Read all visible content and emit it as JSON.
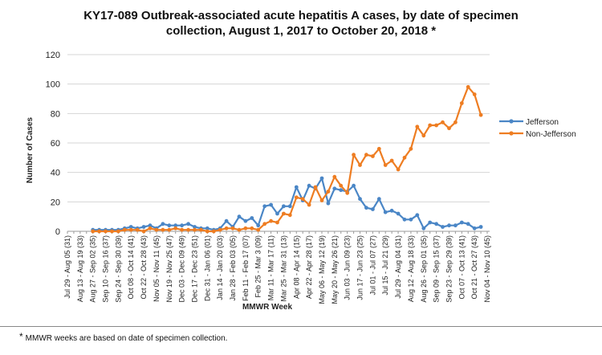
{
  "title_line1": "KY17-089 Outbreak-associated acute hepatitis A cases, by date of specimen",
  "title_line2": "collection, August 1, 2017 to October 20, 2018 *",
  "footnote_star": "*",
  "footnote": "MMWR weeks are based on date of specimen collection.",
  "chart_data": {
    "type": "line",
    "title": "KY17-089 Outbreak-associated acute hepatitis A cases, by date of specimen collection, August 1, 2017 to October 20, 2018 *",
    "xlabel": "MMWR Week",
    "ylabel": "Number of Cases",
    "ylim": [
      0,
      120
    ],
    "yticks": [
      0,
      20,
      40,
      60,
      80,
      100,
      120
    ],
    "grid": true,
    "legend_position": "right",
    "tick_labels": [
      "Jul 29 - Aug 05 (31)",
      "Aug 13 - Aug 19 (33)",
      "Aug 27 - Sep 02 (35)",
      "Sep 10 - Sep 16 (37)",
      "Sep 24 - Sep 30 (39)",
      "Oct 08 - Oct 14 (41)",
      "Oct 22 - Oct 28 (43)",
      "Nov 05 - Nov 11 (45)",
      "Nov 19 - Nov 25 (47)",
      "Dec 03 - Dec 09 (49)",
      "Dec 17 - Dec 23 (51)",
      "Dec 31 - Jan 06 (01)",
      "Jan 14 - Jan 20 (03)",
      "Jan 28 - Feb 03 (05)",
      "Feb 11 - Feb 17 (07)",
      "Feb 25 - Mar 3 (09)",
      "Mar 11 - Mar 17 (11)",
      "Mar 25 - Mar 31 (13)",
      "Apr 08 - Apr 14 (15)",
      "Apr 22 - Apr 28 (17)",
      "May 06 - May 12 (19)",
      "May 20 - May 26 (21)",
      "Jun 03 - Jun 09 (23)",
      "Jun 17 - Jun 23 (25)",
      "Jul 01 - Jul 07 (27)",
      "Jul 15 - Jul 21 (29)",
      "Jul 29 - Aug 04 (31)",
      "Aug 12 - Aug 18 (33)",
      "Aug 26 - Sep 01 (35)",
      "Sep 09 - Sep 15 (37)",
      "Sep 23 - Sep 29 (39)",
      "Oct 07 - Oct 13 (41)",
      "Oct 21 - Oct 27 (43)",
      "Nov 04 - Nov 10 (45)"
    ],
    "series": [
      {
        "name": "Jefferson",
        "color": "#4a86c6",
        "start_week_index": 4,
        "values": [
          1,
          1,
          1,
          1,
          1,
          2,
          3,
          2,
          3,
          4,
          2,
          5,
          4,
          4,
          4,
          5,
          3,
          2,
          2,
          1,
          2,
          7,
          3,
          10,
          7,
          9,
          4,
          17,
          18,
          12,
          17,
          17,
          30,
          21,
          31,
          29,
          36,
          19,
          29,
          28,
          27,
          31,
          22,
          16,
          15,
          22,
          13,
          14,
          12,
          8,
          8,
          11,
          2,
          6,
          5,
          3,
          4,
          4,
          6,
          5,
          2,
          3
        ]
      },
      {
        "name": "Non-Jefferson",
        "color": "#ee7d22",
        "start_week_index": 4,
        "values": [
          0,
          0,
          0,
          0,
          0,
          1,
          1,
          1,
          0,
          2,
          1,
          1,
          1,
          2,
          1,
          1,
          1,
          1,
          0,
          0,
          1,
          2,
          2,
          1,
          2,
          2,
          1,
          5,
          7,
          6,
          12,
          11,
          23,
          22,
          18,
          30,
          21,
          27,
          37,
          31,
          26,
          52,
          45,
          52,
          51,
          56,
          45,
          48,
          42,
          50,
          56,
          71,
          65,
          72,
          72,
          74,
          70,
          74,
          87,
          98,
          93,
          79
        ]
      }
    ]
  }
}
